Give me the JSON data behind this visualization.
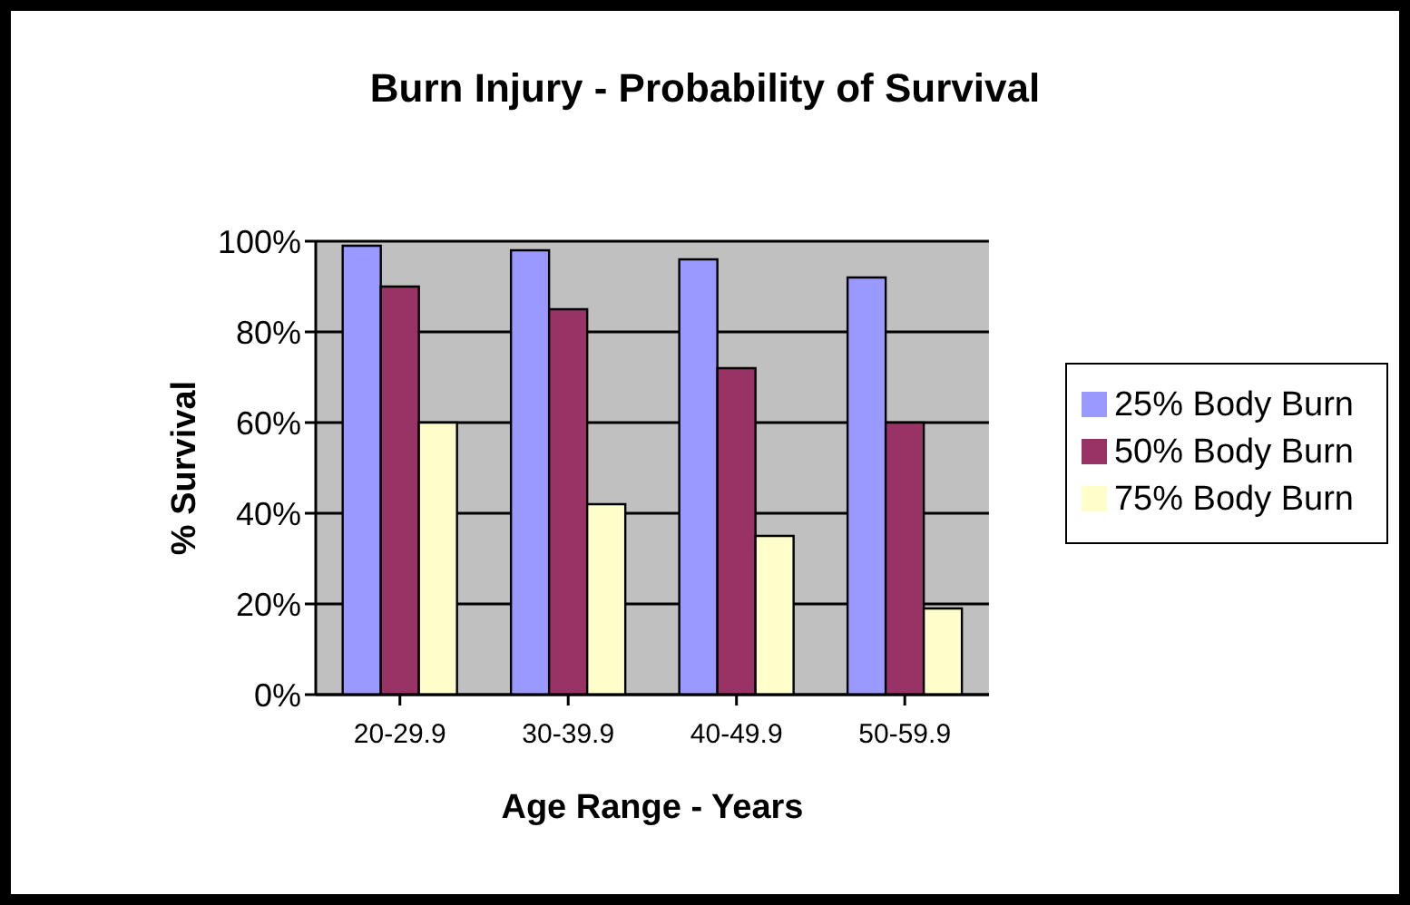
{
  "chart_data": {
    "type": "bar",
    "title": "Burn Injury - Probability of Survival",
    "xlabel": "Age Range - Years",
    "ylabel": "% Survival",
    "categories": [
      "20-29.9",
      "30-39.9",
      "40-49.9",
      "50-59.9"
    ],
    "series": [
      {
        "name": "25% Body Burn",
        "color": "#9999ff",
        "values": [
          99,
          98,
          96,
          92
        ]
      },
      {
        "name": "50% Body Burn",
        "color": "#993366",
        "values": [
          90,
          85,
          72,
          60
        ]
      },
      {
        "name": "75% Body Burn",
        "color": "#ffffcc",
        "values": [
          60,
          42,
          35,
          19
        ]
      }
    ],
    "ylim": [
      0,
      100
    ],
    "yticks": [
      {
        "value": 0,
        "label": "0%"
      },
      {
        "value": 20,
        "label": "20%"
      },
      {
        "value": 40,
        "label": "40%"
      },
      {
        "value": 60,
        "label": "60%"
      },
      {
        "value": 80,
        "label": "80%"
      },
      {
        "value": 100,
        "label": "100%"
      }
    ],
    "grid": "y",
    "legend": "right"
  }
}
